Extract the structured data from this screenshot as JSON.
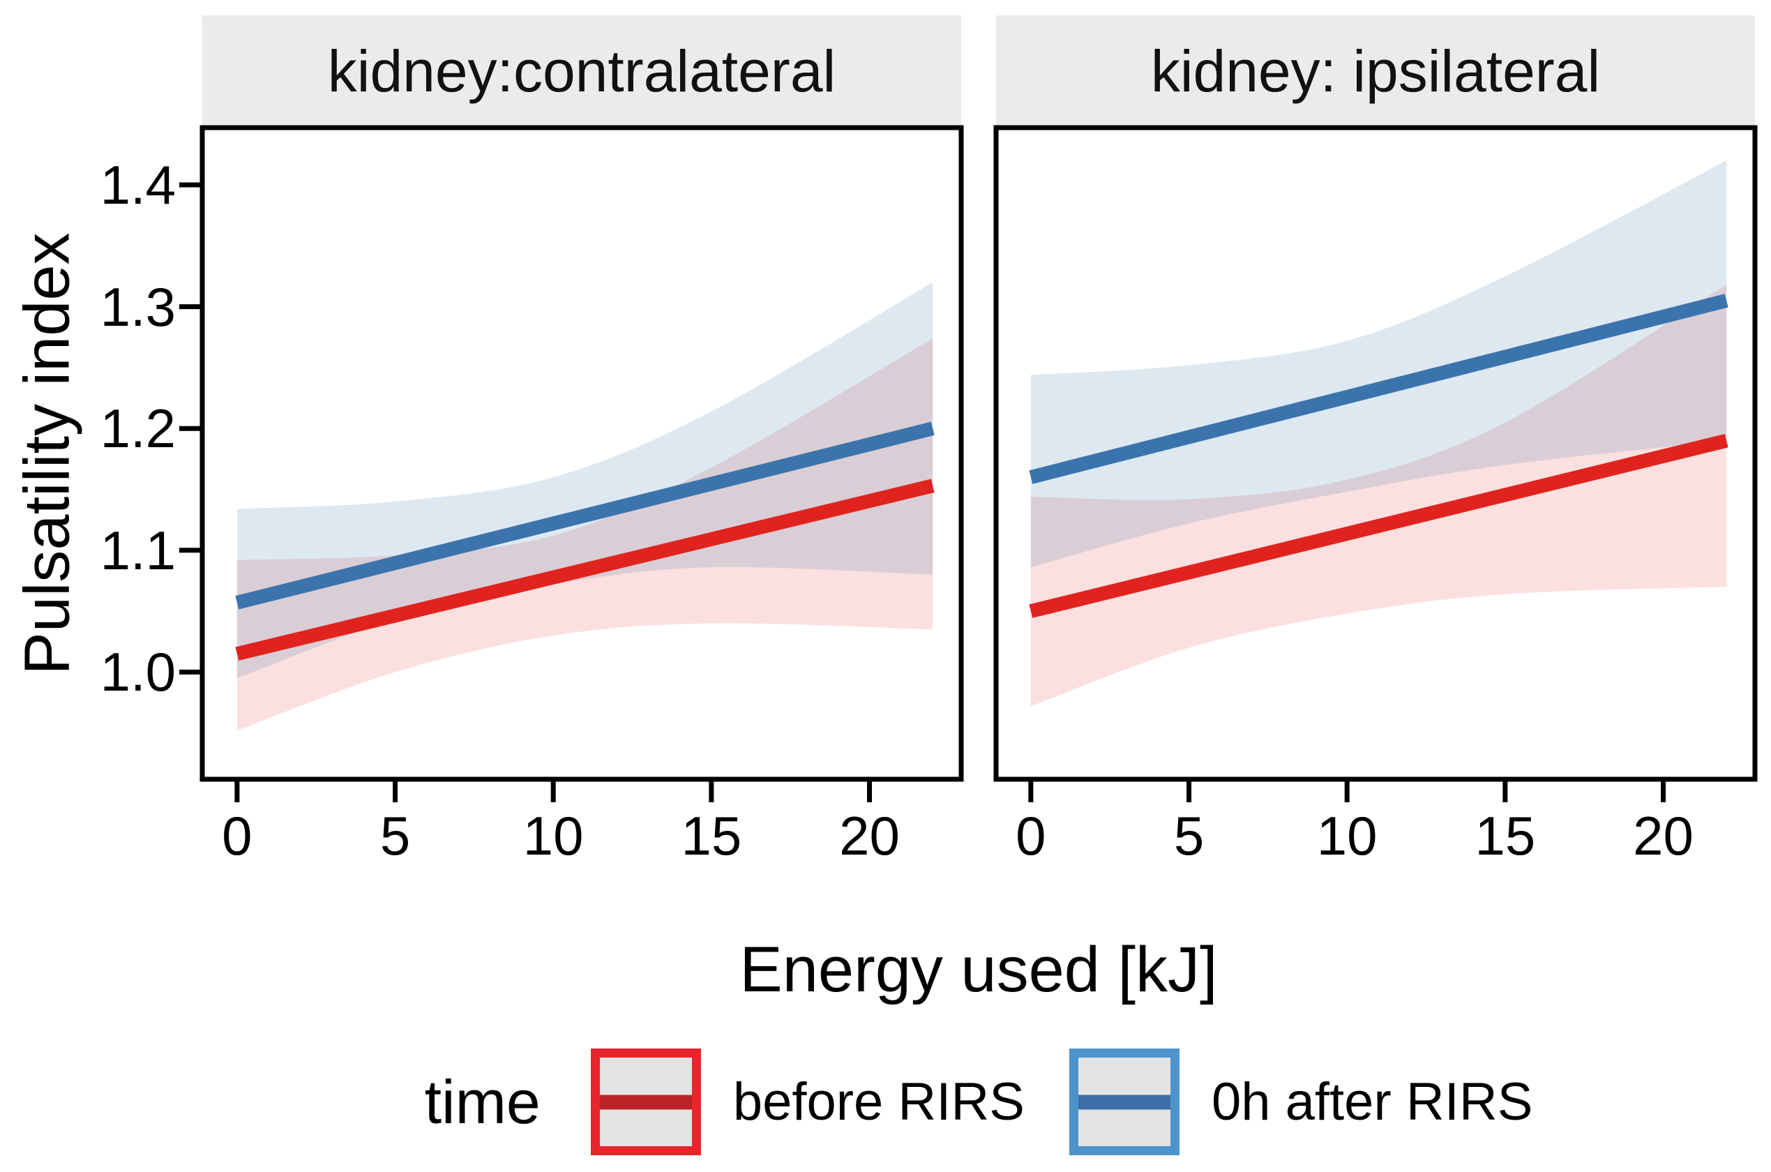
{
  "chart_data": {
    "type": "line",
    "description": "Faceted regression plot of pulsatility index vs energy used, with 95% confidence ribbons",
    "x_axis": {
      "title": "Energy used [kJ]",
      "ticks": [
        0,
        5,
        10,
        15,
        20
      ],
      "tick_labels": [
        "0",
        "5",
        "10",
        "15",
        "20"
      ],
      "range": [
        -1.1,
        22.9
      ],
      "grid": false
    },
    "y_axis": {
      "title": "Pulsatility index",
      "ticks": [
        1.4,
        1.3,
        1.2,
        1.1,
        1.0
      ],
      "tick_labels": [
        "1.4",
        "1.3",
        "1.2",
        "1.1",
        "1.0"
      ],
      "range": [
        0.912,
        1.447
      ],
      "grid": false
    },
    "legend": {
      "title": "time",
      "position": "bottom",
      "items": [
        {
          "label": "before RIRS",
          "line_color": "#E0231F",
          "key_border": "#EA242C",
          "key_line": "#BC2328",
          "key_fill": "#E3E3E3"
        },
        {
          "label": "0h after RIRS",
          "line_color": "#3B74AD",
          "key_border": "#4C93CB",
          "key_line": "#3C6FA6",
          "key_fill": "#E3E3E3"
        }
      ]
    },
    "style": {
      "strip_fill": "#EBEBEB",
      "panel_border": "#000000",
      "red": "#E0231F",
      "blue": "#3B74AD",
      "red_ribbon_opacity": 0.14,
      "blue_ribbon_opacity": 0.17,
      "line_width": 20
    },
    "facets": [
      {
        "title": "kidney:contralateral",
        "series": [
          {
            "name": "before RIRS",
            "color": "#E0231F",
            "x": [
              0,
              22
            ],
            "y": [
              1.015,
              1.153
            ],
            "ci_x": [
              0,
              5,
              10,
              15,
              22
            ],
            "ci_lower": [
              0.952,
              1.0,
              1.03,
              1.04,
              1.035
            ],
            "ci_upper": [
              1.092,
              1.096,
              1.112,
              1.168,
              1.274
            ]
          },
          {
            "name": "0h after RIRS",
            "color": "#3B74AD",
            "x": [
              0,
              22
            ],
            "y": [
              1.057,
              1.2
            ],
            "ci_x": [
              0,
              5,
              10,
              15,
              22
            ],
            "ci_lower": [
              0.995,
              1.043,
              1.072,
              1.086,
              1.08
            ],
            "ci_upper": [
              1.134,
              1.14,
              1.16,
              1.214,
              1.32
            ]
          }
        ]
      },
      {
        "title": "kidney: ipsilateral",
        "series": [
          {
            "name": "before RIRS",
            "color": "#E0231F",
            "x": [
              0,
              22
            ],
            "y": [
              1.05,
              1.19
            ],
            "ci_x": [
              0,
              5,
              10,
              15,
              22
            ],
            "ci_lower": [
              0.972,
              1.02,
              1.048,
              1.064,
              1.07
            ],
            "ci_upper": [
              1.144,
              1.142,
              1.158,
              1.205,
              1.318
            ]
          },
          {
            "name": "0h after RIRS",
            "color": "#3B74AD",
            "x": [
              0,
              22
            ],
            "y": [
              1.16,
              1.305
            ],
            "ci_x": [
              0,
              5,
              10,
              15,
              22
            ],
            "ci_lower": [
              1.086,
              1.122,
              1.148,
              1.17,
              1.19
            ],
            "ci_upper": [
              1.244,
              1.252,
              1.272,
              1.325,
              1.42
            ]
          }
        ]
      }
    ]
  }
}
